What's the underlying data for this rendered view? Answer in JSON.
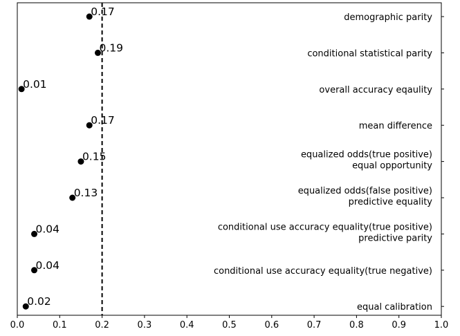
{
  "chart_data": {
    "type": "scatter",
    "orientation": "horizontal",
    "xlim": [
      0.0,
      1.0
    ],
    "x_ticks": [
      "0.0",
      "0.1",
      "0.2",
      "0.3",
      "0.4",
      "0.5",
      "0.6",
      "0.7",
      "0.8",
      "0.9",
      "1.0"
    ],
    "x_tick_values": [
      0.0,
      0.1,
      0.2,
      0.3,
      0.4,
      0.5,
      0.6,
      0.7,
      0.8,
      0.9,
      1.0
    ],
    "threshold": 0.2,
    "threshold_style": "dashed",
    "grid": false,
    "marker_color": "#000000",
    "points": [
      {
        "category": [
          "demographic parity"
        ],
        "value": 0.17,
        "label": "0.17"
      },
      {
        "category": [
          "conditional statistical parity"
        ],
        "value": 0.19,
        "label": "0.19"
      },
      {
        "category": [
          "overall accuracy eqaulity"
        ],
        "value": 0.01,
        "label": "0.01"
      },
      {
        "category": [
          "mean difference"
        ],
        "value": 0.17,
        "label": "0.17"
      },
      {
        "category": [
          "equalized odds(true positive)",
          "equal opportunity"
        ],
        "value": 0.15,
        "label": "0.15"
      },
      {
        "category": [
          "equalized odds(false positive)",
          "predictive equality"
        ],
        "value": 0.13,
        "label": "0.13"
      },
      {
        "category": [
          "conditional use accuracy equality(true positive)",
          "predictive parity"
        ],
        "value": 0.04,
        "label": "0.04"
      },
      {
        "category": [
          "conditional use accuracy equality(true negative)"
        ],
        "value": 0.04,
        "label": "0.04"
      },
      {
        "category": [
          "equal calibration"
        ],
        "value": 0.02,
        "label": "0.02"
      }
    ]
  }
}
